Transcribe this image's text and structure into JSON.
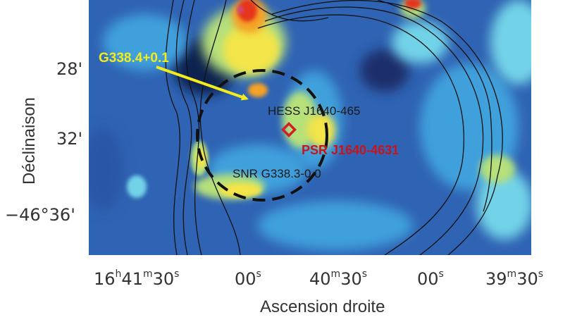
{
  "figure": {
    "annotations": {
      "remnant_label": "G338.4+0.1",
      "hess_label": "HESS J1640-465",
      "pulsar_label": "PSR J1640-4631",
      "snr_label": "SNR G338.3-0.0"
    },
    "y_axis": {
      "title": "Déclinaison",
      "ticks": [
        "28'",
        "32'",
        "−46°36'"
      ]
    },
    "x_axis": {
      "title": "Ascension droite",
      "ticks": [
        {
          "h": "16",
          "m": "41",
          "s": "30"
        },
        {
          "s": "00"
        },
        {
          "m": "40",
          "s": "30"
        },
        {
          "s": "00"
        },
        {
          "m": "39",
          "s": "30"
        }
      ],
      "unit_symbols": {
        "h": "h",
        "m": "m",
        "s": "s"
      }
    },
    "colors": {
      "remnant_label": "#f4ea1c",
      "pulsar_marker": "#d21f26",
      "pulsar_label": "#c8141c",
      "hess_label": "#1a1a1a",
      "contours": "#111111",
      "colormap": [
        "#1a3f8f",
        "#2f63b3",
        "#3fa0dc",
        "#72d3e8",
        "#b6e07a",
        "#f2e44a",
        "#f5a225",
        "#e5341d"
      ]
    }
  }
}
